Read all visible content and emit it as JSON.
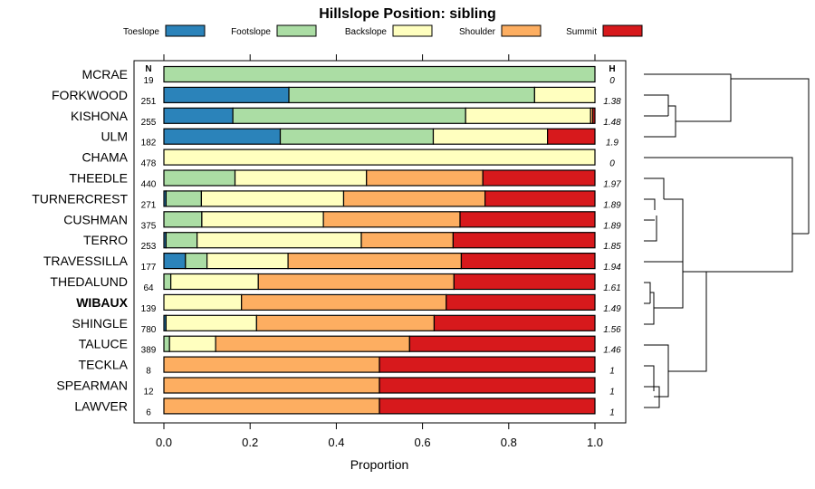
{
  "chart_data": {
    "type": "bar",
    "orientation": "horizontal",
    "stacked": true,
    "title": "Hillslope Position: sibling",
    "xlabel": "Proportion",
    "ylabel": "",
    "xlim": [
      0,
      1
    ],
    "xticks": [
      "0.0",
      "0.2",
      "0.4",
      "0.6",
      "0.8",
      "1.0"
    ],
    "n_header": "N",
    "h_header": "H",
    "highlight": "WIBAUX",
    "legend": [
      {
        "name": "Toeslope",
        "color": "#2b83ba"
      },
      {
        "name": "Footslope",
        "color": "#abdda4"
      },
      {
        "name": "Backslope",
        "color": "#ffffbf"
      },
      {
        "name": "Shoulder",
        "color": "#fdae61"
      },
      {
        "name": "Summit",
        "color": "#d7191c"
      }
    ],
    "categories": [
      "MCRAE",
      "FORKWOOD",
      "KISHONA",
      "ULM",
      "CHAMA",
      "THEEDLE",
      "TURNERCREST",
      "CUSHMAN",
      "TERRO",
      "TRAVESSILLA",
      "THEDALUND",
      "WIBAUX",
      "SHINGLE",
      "TALUCE",
      "TECKLA",
      "SPEARMAN",
      "LAWVER"
    ],
    "n": [
      "19",
      "251",
      "255",
      "182",
      "478",
      "440",
      "271",
      "375",
      "253",
      "177",
      "64",
      "139",
      "780",
      "389",
      "8",
      "12",
      "6"
    ],
    "h": [
      "0",
      "1.38",
      "1.48",
      "1.9",
      "0",
      "1.97",
      "1.89",
      "1.89",
      "1.85",
      "1.94",
      "1.61",
      "1.49",
      "1.56",
      "1.46",
      "1",
      "1",
      "1"
    ],
    "series": [
      {
        "name": "Toeslope",
        "values": [
          0,
          0.29,
          0.16,
          0.27,
          0,
          0,
          0.005,
          0,
          0.005,
          0.05,
          0,
          0,
          0.005,
          0,
          0,
          0,
          0
        ]
      },
      {
        "name": "Footslope",
        "values": [
          1,
          0.57,
          0.54,
          0.355,
          0,
          0.165,
          0.082,
          0.088,
          0.072,
          0.05,
          0.016,
          0,
          0,
          0.013,
          0,
          0,
          0
        ]
      },
      {
        "name": "Backslope",
        "values": [
          0,
          0.14,
          0.29,
          0.265,
          1,
          0.305,
          0.33,
          0.282,
          0.381,
          0.188,
          0.203,
          0.18,
          0.21,
          0.107,
          0,
          0,
          0
        ]
      },
      {
        "name": "Shoulder",
        "values": [
          0,
          0,
          0.005,
          0,
          0,
          0.27,
          0.328,
          0.317,
          0.213,
          0.402,
          0.454,
          0.475,
          0.412,
          0.45,
          0.5,
          0.5,
          0.5
        ]
      },
      {
        "name": "Summit",
        "values": [
          0,
          0,
          0.005,
          0.11,
          0,
          0.26,
          0.255,
          0.313,
          0.329,
          0.31,
          0.327,
          0.345,
          0.373,
          0.43,
          0.5,
          0.5,
          0.5
        ]
      }
    ]
  }
}
